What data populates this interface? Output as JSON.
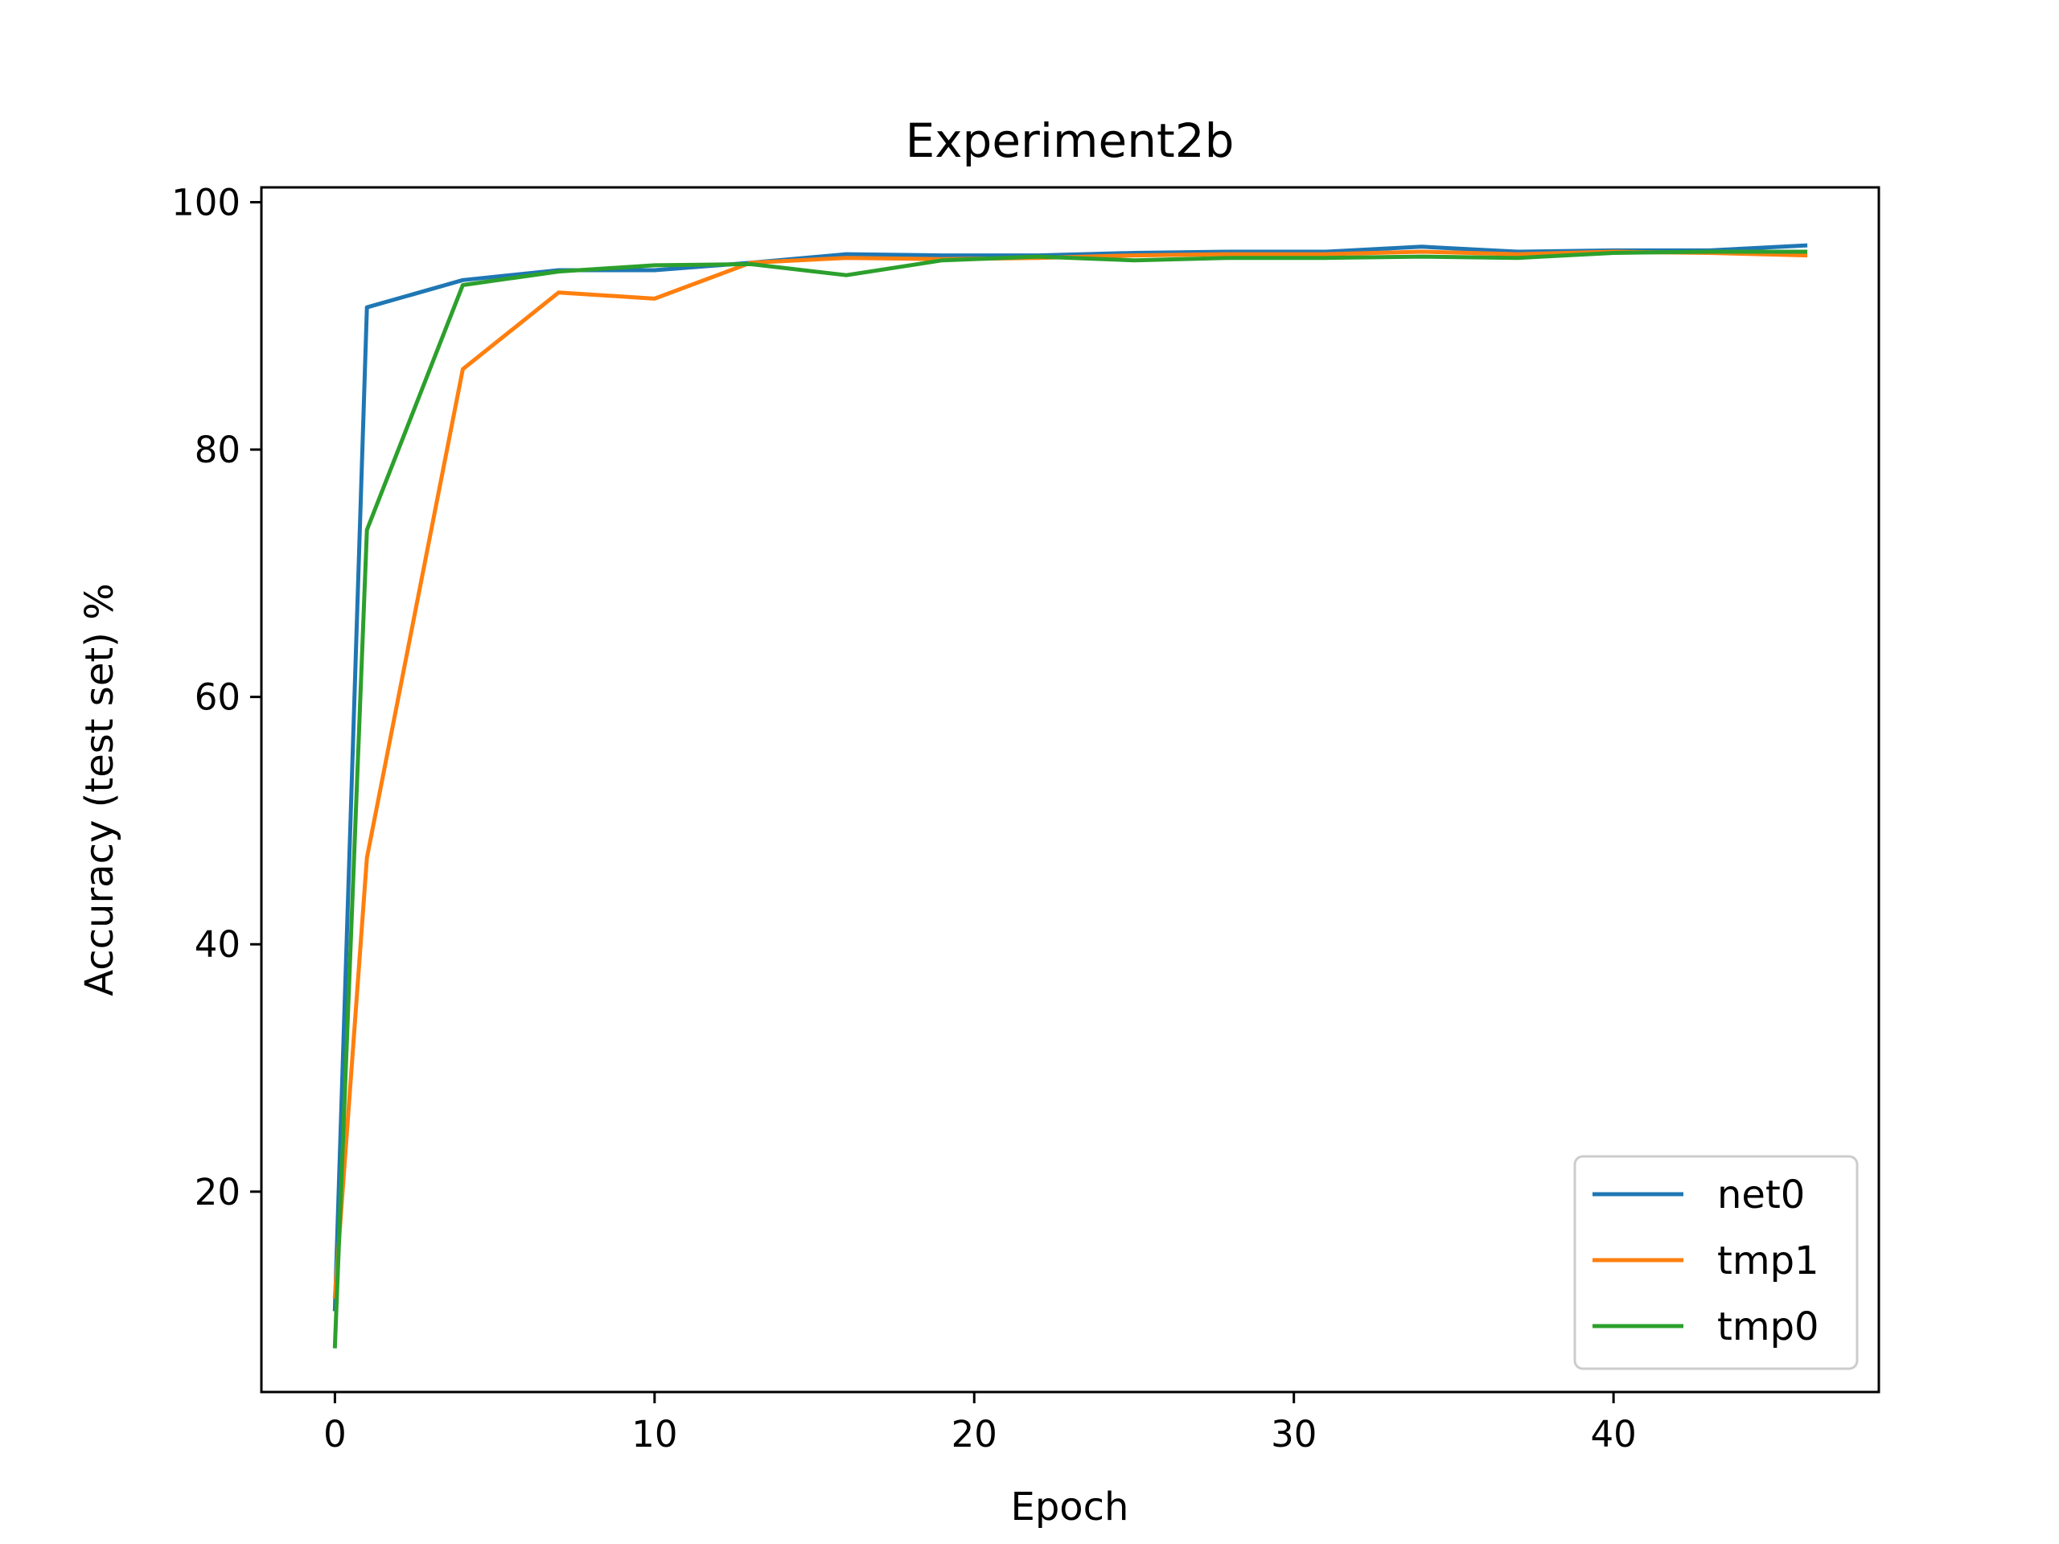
{
  "chart_data": {
    "type": "line",
    "title": "Experiment2b",
    "xlabel": "Epoch",
    "ylabel": "Accuracy (test set) %",
    "xlim": [
      -2.3,
      48.3
    ],
    "ylim": [
      3.8,
      101.2
    ],
    "xticks": [
      0,
      10,
      20,
      30,
      40
    ],
    "yticks": [
      20,
      40,
      60,
      80,
      100
    ],
    "grid": false,
    "legend_position": "lower-right",
    "series": [
      {
        "name": "net0",
        "color": "#1f77b4",
        "x": [
          0,
          1,
          4,
          7,
          10,
          13,
          16,
          19,
          22,
          25,
          28,
          31,
          34,
          37,
          40,
          43,
          46
        ],
        "y": [
          10.5,
          91.5,
          93.7,
          94.5,
          94.5,
          95.1,
          95.8,
          95.7,
          95.7,
          95.9,
          96.0,
          96.0,
          96.4,
          96.0,
          96.1,
          96.1,
          96.5
        ]
      },
      {
        "name": "tmp1",
        "color": "#ff7f0e",
        "x": [
          0,
          1,
          4,
          7,
          10,
          13,
          16,
          19,
          22,
          25,
          28,
          31,
          34,
          37,
          40,
          43,
          46
        ],
        "y": [
          11.5,
          47.0,
          86.5,
          92.7,
          92.2,
          95.1,
          95.5,
          95.4,
          95.5,
          95.7,
          95.8,
          95.8,
          96.0,
          95.8,
          96.0,
          95.9,
          95.7
        ]
      },
      {
        "name": "tmp0",
        "color": "#2ca02c",
        "x": [
          0,
          1,
          4,
          7,
          10,
          13,
          16,
          19,
          22,
          25,
          28,
          31,
          34,
          37,
          40,
          43,
          46
        ],
        "y": [
          7.5,
          73.5,
          93.3,
          94.4,
          94.9,
          95.0,
          94.1,
          95.3,
          95.6,
          95.3,
          95.5,
          95.5,
          95.6,
          95.5,
          95.9,
          96.0,
          96.0
        ]
      }
    ]
  }
}
